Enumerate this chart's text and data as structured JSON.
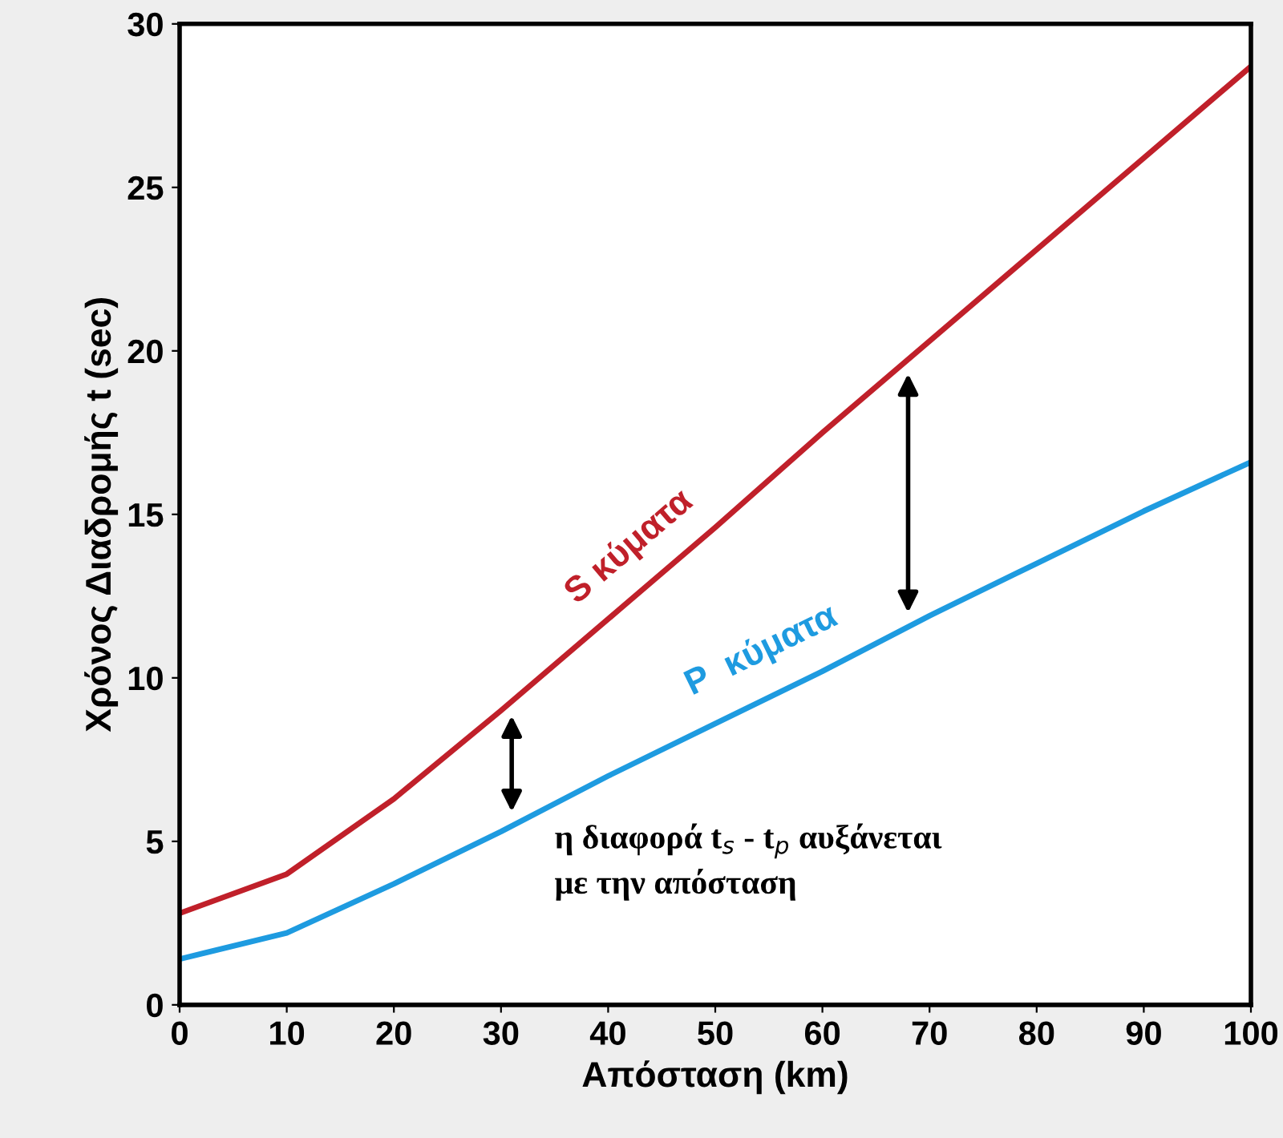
{
  "chart_data": {
    "type": "line",
    "xlabel": "Απόσταση (km)",
    "ylabel": "Χρόνος Διαδρομής t (sec)",
    "x": [
      0,
      10,
      20,
      30,
      40,
      50,
      60,
      70,
      80,
      90,
      100
    ],
    "series": [
      {
        "name": "S κύματα",
        "color": "#c0202a",
        "values": [
          2.8,
          4.0,
          6.3,
          9.0,
          11.8,
          14.6,
          17.5,
          20.3,
          23.1,
          25.9,
          28.7
        ]
      },
      {
        "name": "P  κύματα",
        "color": "#1e9be0",
        "values": [
          1.4,
          2.2,
          3.7,
          5.3,
          7.0,
          8.6,
          10.2,
          11.9,
          13.5,
          15.1,
          16.6
        ]
      }
    ],
    "xlim": [
      0,
      100
    ],
    "ylim": [
      0,
      30
    ],
    "xticks": [
      0,
      10,
      20,
      30,
      40,
      50,
      60,
      70,
      80,
      90,
      100
    ],
    "yticks": [
      0,
      5,
      10,
      15,
      20,
      25,
      30
    ],
    "annotations": [
      "η διαφορά t$_{s}$ - t$_{p}$ αυξάνεται\nμε την απόσταση"
    ],
    "grid": false,
    "legend": false,
    "marker": "none",
    "line_style": "solid"
  }
}
